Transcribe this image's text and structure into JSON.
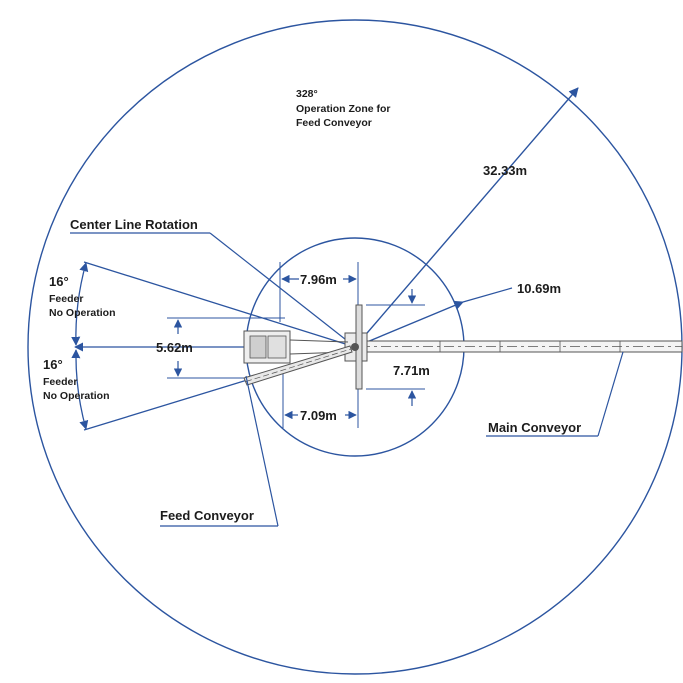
{
  "labels": {
    "outer_angle": "328°",
    "outer_zone_line1": "Operation Zone for",
    "outer_zone_line2": "Feed Conveyor",
    "outer_radius": "32.33m",
    "center_line": "Center Line Rotation",
    "inner_radius": "10.69m",
    "dim_top": "7.96m",
    "dim_bottom": "7.09m",
    "dim_left": "5.62m",
    "dim_right": "7.71m",
    "upper_angle": "16°",
    "upper_feeder_line1": "Feeder",
    "upper_feeder_line2": "No Operation",
    "lower_angle": "16°",
    "lower_feeder_line1": "Feeder",
    "lower_feeder_line2": "No Operation",
    "main_conveyor": "Main Conveyor",
    "feed_conveyor": "Feed Conveyor"
  },
  "colors": {
    "line": "#2c55a0",
    "machine": "#555555",
    "text": "#1c1c1c"
  }
}
